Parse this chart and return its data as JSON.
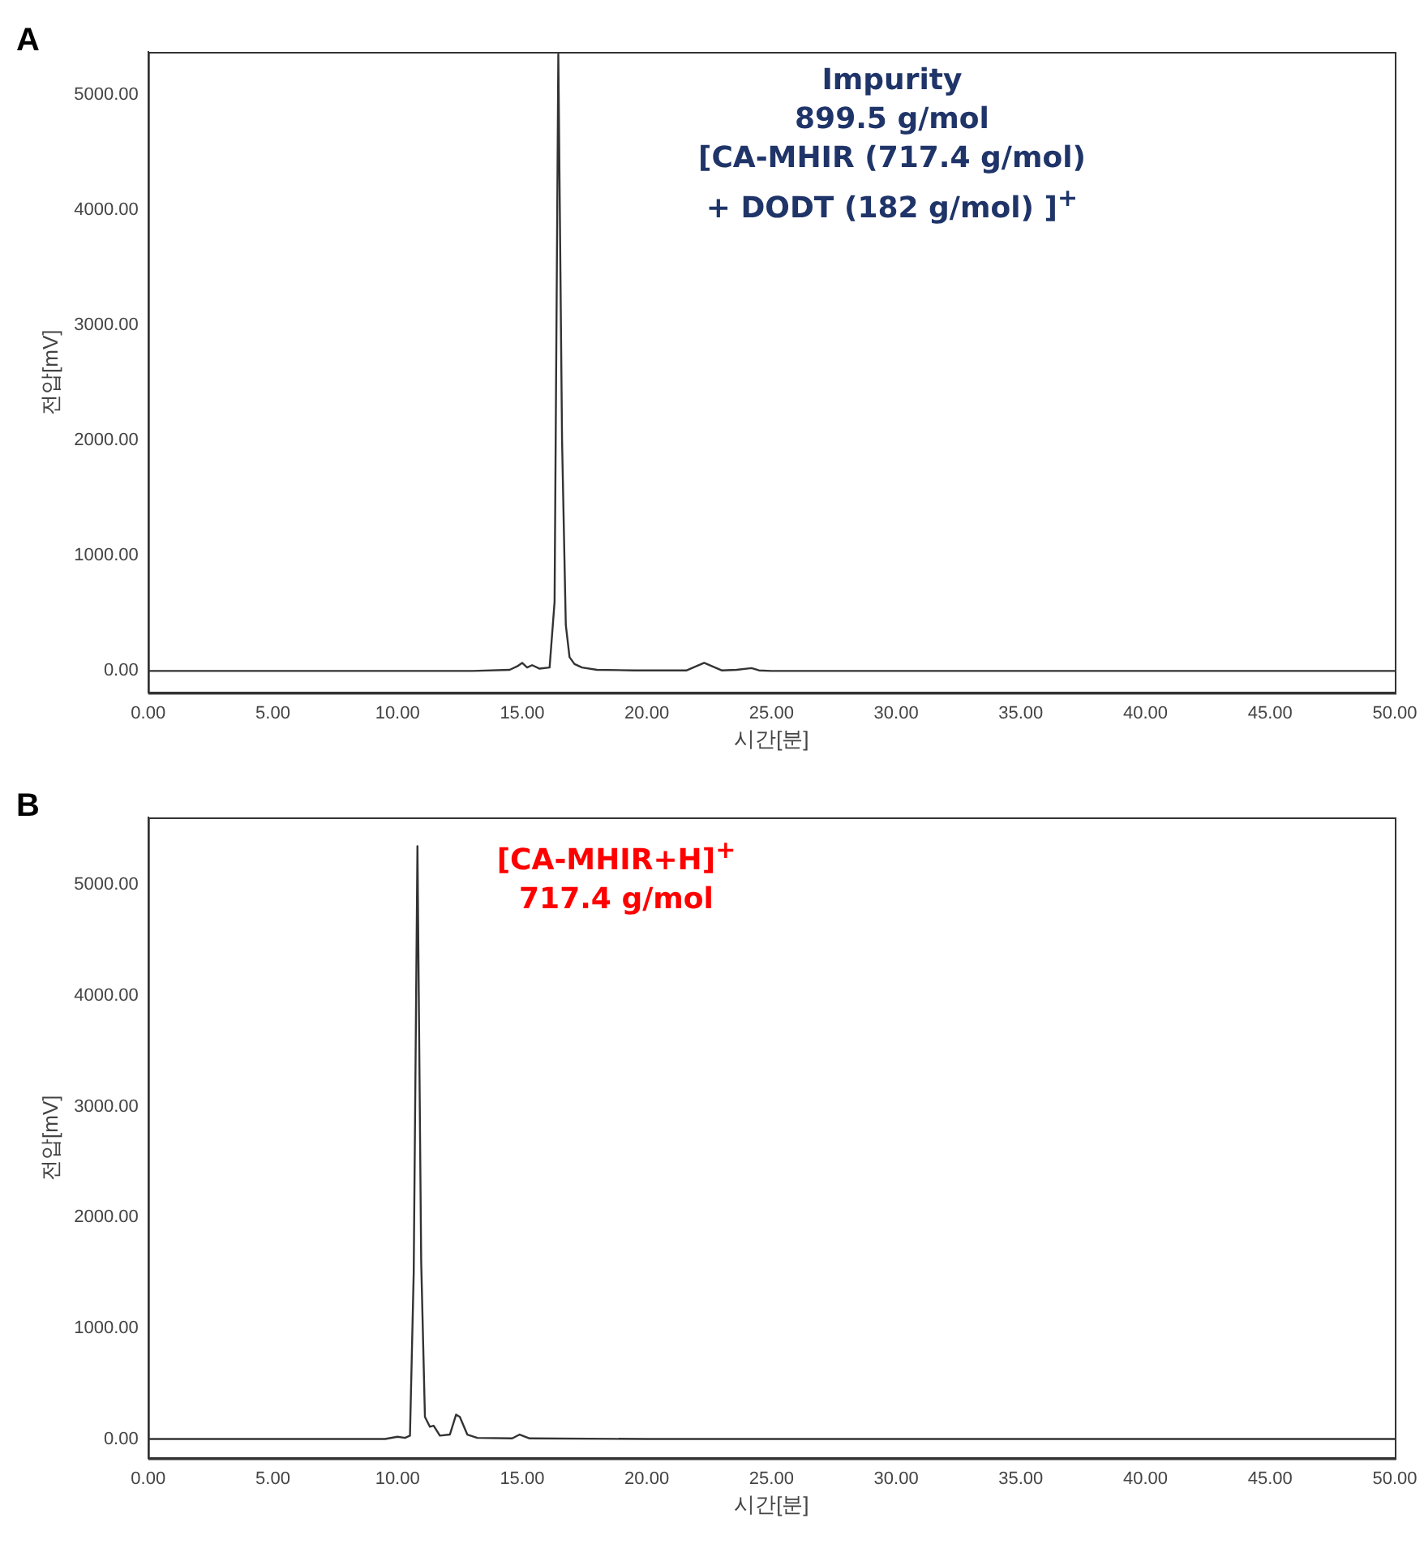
{
  "chart_data": [
    {
      "type": "line",
      "title": "A",
      "xlabel": "시간[분]",
      "ylabel": "전압[mV]",
      "annotations": [
        "Impurity",
        "899.5 g/mol",
        "[CA-MHIR (717.4 g/mol)",
        "+ DODT (182 g/mol) ]$^{+}$"
      ],
      "xlim": [
        0,
        50
      ],
      "ylim": [
        -190,
        5370
      ],
      "xticks": [
        {
          "value": 0,
          "label": "0.00"
        },
        {
          "value": 5,
          "label": "5.00"
        },
        {
          "value": 10,
          "label": "10.00"
        },
        {
          "value": 15,
          "label": "15.00"
        },
        {
          "value": 20,
          "label": "20.00"
        },
        {
          "value": 25,
          "label": "25.00"
        },
        {
          "value": 30,
          "label": "30.00"
        },
        {
          "value": 35,
          "label": "35.00"
        },
        {
          "value": 40,
          "label": "40.00"
        },
        {
          "value": 45,
          "label": "45.00"
        },
        {
          "value": 50,
          "label": "50.00"
        }
      ],
      "yticks": [
        {
          "value": 0,
          "label": "0.00"
        },
        {
          "value": 1000,
          "label": "1000.00"
        },
        {
          "value": 2000,
          "label": "2000.00"
        },
        {
          "value": 3000,
          "label": "3000.00"
        },
        {
          "value": 4000,
          "label": "4000.00"
        },
        {
          "value": 5000,
          "label": "5000.00"
        }
      ],
      "grid": false,
      "legend": false,
      "marker": "none",
      "line_style": "solid",
      "series": [
        {
          "color": "#333333",
          "x": [
            0,
            13,
            14.5,
            14.8,
            15.0,
            15.2,
            15.4,
            15.7,
            16.1,
            16.3,
            16.45,
            16.6,
            16.75,
            16.9,
            17.1,
            17.4,
            18,
            19.5,
            21.6,
            22.3,
            23.0,
            23.6,
            24.2,
            24.5,
            25,
            35,
            47,
            50
          ],
          "values": [
            0,
            0,
            10,
            40,
            70,
            30,
            50,
            20,
            30,
            600,
            5350,
            2000,
            400,
            120,
            60,
            30,
            10,
            5,
            5,
            70,
            5,
            10,
            25,
            5,
            0,
            0,
            0,
            0
          ]
        }
      ]
    },
    {
      "type": "line",
      "title": "B",
      "xlabel": "시간[분]",
      "ylabel": "전압[mV]",
      "annotations": [
        "[CA-MHIR+H]$^{+}$",
        "717.4 g/mol"
      ],
      "xlim": [
        0,
        50
      ],
      "ylim": [
        -175,
        5610
      ],
      "xticks": [
        {
          "value": 0,
          "label": "0.00"
        },
        {
          "value": 5,
          "label": "5.00"
        },
        {
          "value": 10,
          "label": "10.00"
        },
        {
          "value": 15,
          "label": "15.00"
        },
        {
          "value": 20,
          "label": "20.00"
        },
        {
          "value": 25,
          "label": "25.00"
        },
        {
          "value": 30,
          "label": "30.00"
        },
        {
          "value": 35,
          "label": "35.00"
        },
        {
          "value": 40,
          "label": "40.00"
        },
        {
          "value": 45,
          "label": "45.00"
        },
        {
          "value": 50,
          "label": "50.00"
        }
      ],
      "yticks": [
        {
          "value": 0,
          "label": "0.00"
        },
        {
          "value": 1000,
          "label": "1000.00"
        },
        {
          "value": 2000,
          "label": "2000.00"
        },
        {
          "value": 3000,
          "label": "3000.00"
        },
        {
          "value": 4000,
          "label": "4000.00"
        },
        {
          "value": 5000,
          "label": "5000.00"
        }
      ],
      "grid": false,
      "legend": false,
      "marker": "none",
      "line_style": "solid",
      "series": [
        {
          "color": "#333333",
          "x": [
            0,
            9.5,
            10.0,
            10.3,
            10.5,
            10.65,
            10.8,
            10.95,
            11.1,
            11.3,
            11.45,
            11.7,
            12.1,
            12.35,
            12.5,
            12.8,
            13.2,
            14.6,
            14.9,
            15.3,
            20,
            50
          ],
          "values": [
            0,
            0,
            20,
            10,
            30,
            1500,
            5350,
            1600,
            200,
            110,
            120,
            30,
            40,
            220,
            200,
            40,
            10,
            5,
            40,
            5,
            0,
            0
          ]
        }
      ]
    }
  ]
}
